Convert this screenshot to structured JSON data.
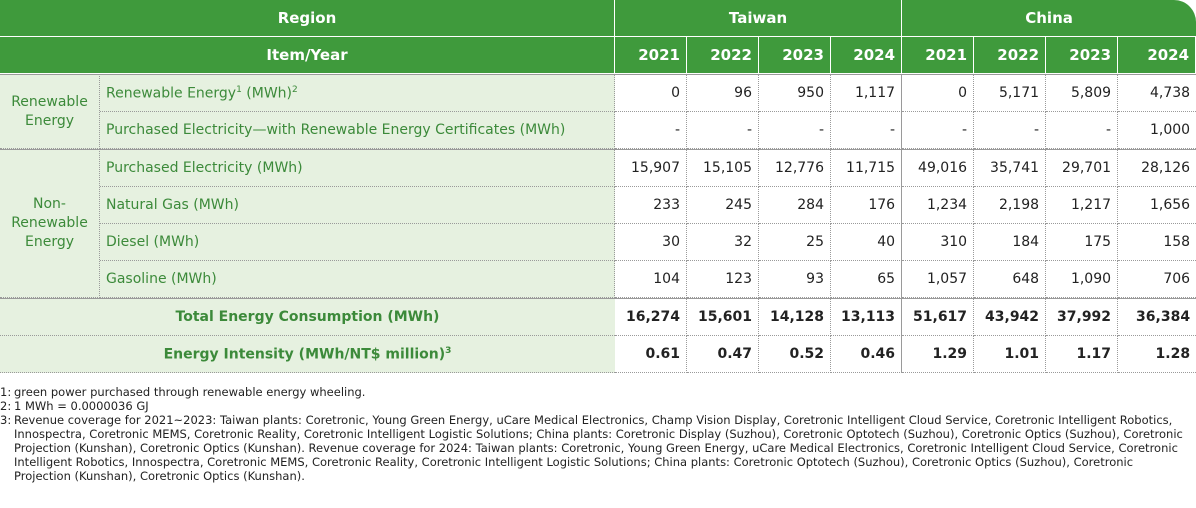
{
  "header": {
    "region": "Region",
    "item_year": "Item/Year",
    "regions": [
      {
        "name": "Taiwan",
        "years": [
          "2021",
          "2022",
          "2023",
          "2024"
        ]
      },
      {
        "name": "China",
        "years": [
          "2021",
          "2022",
          "2023",
          "2024"
        ]
      }
    ]
  },
  "groups": [
    {
      "name": "Renewable Energy",
      "rows": [
        {
          "label": [
            {
              "text": "Renewable Energy",
              "sup": "1"
            },
            {
              "text": " (MWh)",
              "sup": "2"
            }
          ],
          "values": [
            "0",
            "96",
            "950",
            "1,117",
            "0",
            "5,171",
            "5,809",
            "4,738"
          ]
        },
        {
          "label": [
            {
              "text": "Purchased Electricity—with Renewable Energy Certificates (MWh)"
            }
          ],
          "values": [
            "-",
            "-",
            "-",
            "-",
            "-",
            "-",
            "-",
            "1,000"
          ]
        }
      ]
    },
    {
      "name": "Non-Renewable Energy",
      "rows": [
        {
          "label": [
            {
              "text": "Purchased Electricity (MWh)"
            }
          ],
          "values": [
            "15,907",
            "15,105",
            "12,776",
            "11,715",
            "49,016",
            "35,741",
            "29,701",
            "28,126"
          ]
        },
        {
          "label": [
            {
              "text": "Natural Gas (MWh)"
            }
          ],
          "values": [
            "233",
            "245",
            "284",
            "176",
            "1,234",
            "2,198",
            "1,217",
            "1,656"
          ]
        },
        {
          "label": [
            {
              "text": "Diesel (MWh)"
            }
          ],
          "values": [
            "30",
            "32",
            "25",
            "40",
            "310",
            "184",
            "175",
            "158"
          ]
        },
        {
          "label": [
            {
              "text": "Gasoline (MWh)"
            }
          ],
          "values": [
            "104",
            "123",
            "93",
            "65",
            "1,057",
            "648",
            "1,090",
            "706"
          ]
        }
      ]
    }
  ],
  "totals": [
    {
      "label": [
        {
          "text": "Total Energy Consumption (MWh)"
        }
      ],
      "values": [
        "16,274",
        "15,601",
        "14,128",
        "13,113",
        "51,617",
        "43,942",
        "37,992",
        "36,384"
      ]
    },
    {
      "label": [
        {
          "text": "Energy Intensity (MWh/NT$ million)",
          "sup": "3"
        }
      ],
      "values": [
        "0.61",
        "0.47",
        "0.52",
        "0.46",
        "1.29",
        "1.01",
        "1.17",
        "1.28"
      ]
    }
  ],
  "footnotes": [
    {
      "marker": "1:",
      "text": "green power purchased through renewable energy wheeling."
    },
    {
      "marker": "2:",
      "text": "1 MWh = 0.0000036 GJ"
    },
    {
      "marker": "3:",
      "text": "Revenue coverage for 2021~2023: Taiwan plants: Coretronic, Young Green Energy, uCare Medical Electronics, Champ Vision Display, Coretronic Intelligent Cloud Service, Coretronic Intelligent Robotics, Innospectra, Coretronic MEMS, Coretronic Reality, Coretronic Intelligent Logistic Solutions; China plants: Coretronic Display (Suzhou), Coretronic Optotech (Suzhou), Coretronic Optics (Suzhou), Coretronic Projection (Kunshan), Coretronic Optics (Kunshan). Revenue coverage for 2024: Taiwan plants: Coretronic, Young Green Energy, uCare Medical Electronics, Coretronic Intelligent Cloud Service, Coretronic Intelligent Robotics, Innospectra, Coretronic MEMS, Coretronic Reality, Coretronic Intelligent Logistic Solutions; China plants: Coretronic Optotech (Suzhou), Coretronic Optics (Suzhou), Coretronic Projection (Kunshan), Coretronic Optics (Kunshan)."
    }
  ]
}
